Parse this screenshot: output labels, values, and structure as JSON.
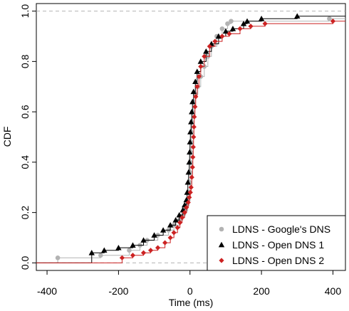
{
  "chart_data": {
    "type": "line",
    "title": "",
    "xlabel": "Time (ms)",
    "ylabel": "CDF",
    "xlim": [
      -430,
      435
    ],
    "ylim": [
      -0.03,
      1.03
    ],
    "xticks": [
      "-400",
      "-200",
      "0",
      "200",
      "400"
    ],
    "yticks": [
      "0.0",
      "0.2",
      "0.4",
      "0.6",
      "0.8",
      "1.0"
    ],
    "reference_lines": [
      0,
      1
    ],
    "grid": false,
    "legend_position": "bottom-right",
    "series": [
      {
        "name": "LDNS - Google's DNS",
        "color": "#b3b3b3",
        "marker": "circle",
        "points": [
          [
            -430,
            0.0
          ],
          [
            -370,
            0.02
          ],
          [
            -250,
            0.03
          ],
          [
            -170,
            0.05
          ],
          [
            -140,
            0.07
          ],
          [
            -120,
            0.09
          ],
          [
            -90,
            0.11
          ],
          [
            -60,
            0.13
          ],
          [
            -45,
            0.15
          ],
          [
            -30,
            0.17
          ],
          [
            -20,
            0.19
          ],
          [
            -12,
            0.21
          ],
          [
            -8,
            0.23
          ],
          [
            -5,
            0.25
          ],
          [
            -3,
            0.28
          ],
          [
            -1,
            0.32
          ],
          [
            0,
            0.36
          ],
          [
            1,
            0.4
          ],
          [
            2,
            0.44
          ],
          [
            3,
            0.48
          ],
          [
            4,
            0.52
          ],
          [
            5,
            0.56
          ],
          [
            7,
            0.6
          ],
          [
            10,
            0.64
          ],
          [
            15,
            0.67
          ],
          [
            22,
            0.7
          ],
          [
            30,
            0.74
          ],
          [
            40,
            0.78
          ],
          [
            50,
            0.82
          ],
          [
            60,
            0.86
          ],
          [
            75,
            0.9
          ],
          [
            90,
            0.93
          ],
          [
            105,
            0.95
          ],
          [
            115,
            0.96
          ],
          [
            390,
            0.97
          ],
          [
            435,
            0.97
          ]
        ]
      },
      {
        "name": "LDNS - Open DNS 1",
        "color": "#000000",
        "marker": "triangle",
        "points": [
          [
            -430,
            0.0
          ],
          [
            -275,
            0.04
          ],
          [
            -240,
            0.05
          ],
          [
            -200,
            0.06
          ],
          [
            -160,
            0.07
          ],
          [
            -130,
            0.09
          ],
          [
            -100,
            0.11
          ],
          [
            -75,
            0.13
          ],
          [
            -55,
            0.15
          ],
          [
            -40,
            0.17
          ],
          [
            -30,
            0.19
          ],
          [
            -20,
            0.21
          ],
          [
            -15,
            0.23
          ],
          [
            -10,
            0.25
          ],
          [
            -8,
            0.28
          ],
          [
            -6,
            0.32
          ],
          [
            -4,
            0.36
          ],
          [
            -2,
            0.4
          ],
          [
            -1,
            0.44
          ],
          [
            0,
            0.48
          ],
          [
            1,
            0.52
          ],
          [
            3,
            0.56
          ],
          [
            5,
            0.6
          ],
          [
            7,
            0.64
          ],
          [
            10,
            0.68
          ],
          [
            15,
            0.72
          ],
          [
            20,
            0.76
          ],
          [
            30,
            0.8
          ],
          [
            45,
            0.84
          ],
          [
            60,
            0.87
          ],
          [
            80,
            0.9
          ],
          [
            100,
            0.92
          ],
          [
            120,
            0.93
          ],
          [
            150,
            0.95
          ],
          [
            160,
            0.96
          ],
          [
            200,
            0.97
          ],
          [
            300,
            0.98
          ],
          [
            435,
            0.98
          ]
        ]
      },
      {
        "name": "LDNS - Open DNS 2",
        "color": "#cc2222",
        "marker": "diamond",
        "points": [
          [
            -430,
            0.0
          ],
          [
            -190,
            0.02
          ],
          [
            -160,
            0.03
          ],
          [
            -130,
            0.04
          ],
          [
            -110,
            0.05
          ],
          [
            -90,
            0.06
          ],
          [
            -70,
            0.08
          ],
          [
            -55,
            0.1
          ],
          [
            -45,
            0.12
          ],
          [
            -35,
            0.14
          ],
          [
            -28,
            0.16
          ],
          [
            -22,
            0.18
          ],
          [
            -15,
            0.2
          ],
          [
            -10,
            0.22
          ],
          [
            -5,
            0.24
          ],
          [
            -2,
            0.26
          ],
          [
            1,
            0.28
          ],
          [
            3,
            0.3
          ],
          [
            5,
            0.34
          ],
          [
            7,
            0.38
          ],
          [
            8,
            0.42
          ],
          [
            9,
            0.46
          ],
          [
            10,
            0.5
          ],
          [
            11,
            0.54
          ],
          [
            12,
            0.58
          ],
          [
            14,
            0.62
          ],
          [
            16,
            0.66
          ],
          [
            20,
            0.7
          ],
          [
            25,
            0.74
          ],
          [
            30,
            0.78
          ],
          [
            40,
            0.82
          ],
          [
            55,
            0.86
          ],
          [
            70,
            0.88
          ],
          [
            90,
            0.9
          ],
          [
            110,
            0.91
          ],
          [
            140,
            0.93
          ],
          [
            170,
            0.94
          ],
          [
            210,
            0.95
          ],
          [
            400,
            0.96
          ],
          [
            435,
            0.96
          ]
        ]
      }
    ]
  }
}
